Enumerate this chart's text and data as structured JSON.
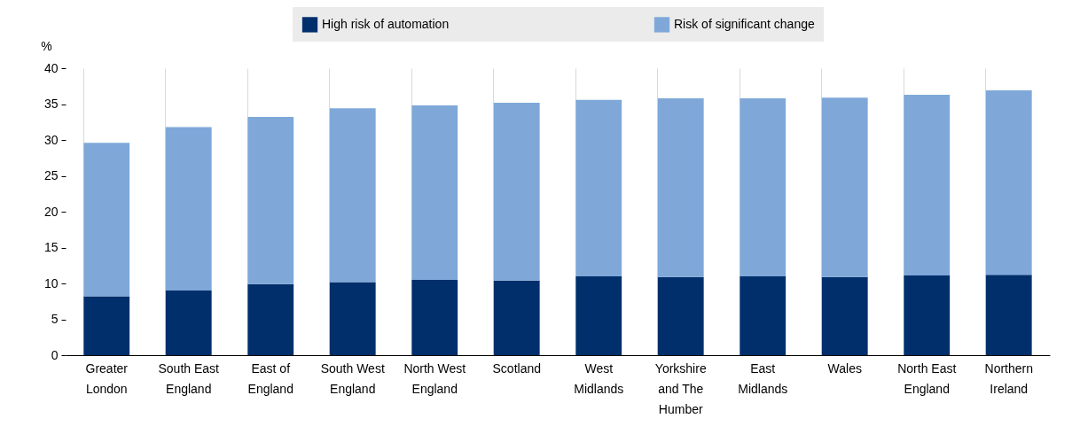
{
  "chart_data": {
    "type": "bar",
    "stacked": true,
    "ylabel": "%",
    "categories": [
      "Greater London",
      "South East England",
      "East of England",
      "South West England",
      "North West England",
      "Scotland",
      "West Midlands",
      "Yorkshire and The Humber",
      "East Midlands",
      "Wales",
      "North East England",
      "Northern Ireland"
    ],
    "series": [
      {
        "name": "High risk of automation",
        "color": "#002f6c",
        "values": [
          8.2,
          9.0,
          9.9,
          10.2,
          10.5,
          10.4,
          11.0,
          10.9,
          11.0,
          10.9,
          11.1,
          11.2
        ]
      },
      {
        "name": "Risk of significant change",
        "color": "#7fa8d9",
        "values": [
          21.4,
          22.8,
          23.3,
          24.2,
          24.3,
          24.8,
          24.6,
          24.9,
          24.8,
          25.0,
          25.2,
          25.7
        ]
      }
    ],
    "ylim": [
      0,
      40
    ],
    "yticks": [
      0,
      5,
      10,
      15,
      20,
      25,
      30,
      35,
      40
    ],
    "grid": "x",
    "legend": "top"
  }
}
